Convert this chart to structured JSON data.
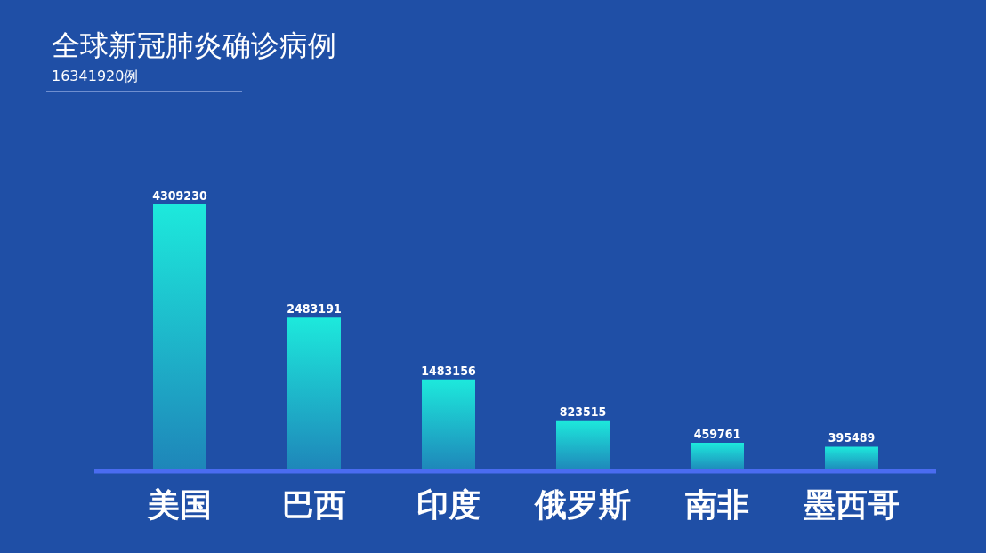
{
  "chart_data": {
    "type": "bar",
    "title": "全球新冠肺炎确诊病例",
    "subtitle": "16341920例",
    "categories": [
      "美国",
      "巴西",
      "印度",
      "俄罗斯",
      "南非",
      "墨西哥"
    ],
    "values": [
      4309230,
      2483191,
      1483156,
      823515,
      459761,
      395489
    ],
    "color": "#1de9dc",
    "data_labels": true,
    "grid": false,
    "legend": false
  }
}
